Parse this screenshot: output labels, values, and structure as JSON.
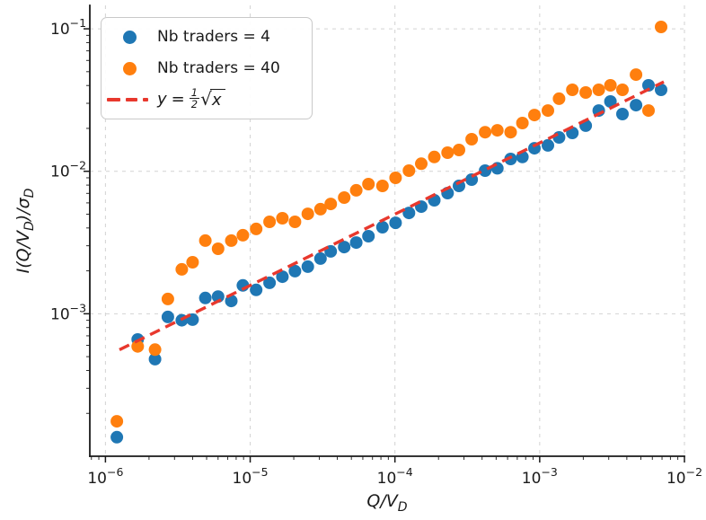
{
  "figure": {
    "background": "#ffffff",
    "text_color": "#1a1a1a"
  },
  "chart_data": {
    "type": "scatter",
    "title": "",
    "x_scale": "log",
    "y_scale": "log",
    "xlim": [
      7.8e-07,
      0.01
    ],
    "ylim": [
      0.0001,
      0.146
    ],
    "xlabel": "Q/V_D",
    "ylabel": "I(Q/V_D)/σ_D",
    "xlabel_parts": [
      {
        "t": "Q/V"
      },
      {
        "t": "D",
        "sub": true
      }
    ],
    "ylabel_parts": [
      {
        "t": "I(Q/V"
      },
      {
        "t": "D",
        "sub": true
      },
      {
        "t": ")/σ"
      },
      {
        "t": "D",
        "sub": true
      }
    ],
    "tick_base": "10",
    "x_tick_exponents": [
      -6,
      -5,
      -4,
      -3,
      -2
    ],
    "y_tick_exponents": [
      -1,
      -2,
      -3
    ],
    "x_tick_labels": [
      "10⁻⁶",
      "10⁻⁵",
      "10⁻⁴",
      "10⁻³",
      "10⁻²"
    ],
    "y_tick_labels": [
      "10⁻¹",
      "10⁻²",
      "10⁻³"
    ],
    "grid": {
      "show": true,
      "color": "#d2d2d2",
      "style": "dashed"
    },
    "legend_position": "upper-left",
    "x": [
      1.2e-06,
      1.67e-06,
      2.2e-06,
      2.7e-06,
      3.37e-06,
      4e-06,
      4.9e-06,
      6e-06,
      7.4e-06,
      8.9e-06,
      1.1e-05,
      1.36e-05,
      1.67e-05,
      2.04e-05,
      2.5e-05,
      3.06e-05,
      3.6e-05,
      4.46e-05,
      5.4e-05,
      6.56e-05,
      8.2e-05,
      0.000101,
      0.000125,
      0.000152,
      0.000187,
      0.000231,
      0.000277,
      0.000339,
      0.00042,
      0.00051,
      0.00063,
      0.00076,
      0.00092,
      0.00114,
      0.00136,
      0.00168,
      0.00208,
      0.00256,
      0.00308,
      0.00373,
      0.00463,
      0.00565,
      0.0069
    ],
    "series": [
      {
        "name": "Nb traders = 4",
        "color": "#1f77b4",
        "marker": "circle",
        "y": [
          0.000136,
          0.00066,
          0.00048,
          0.00095,
          0.0009,
          0.00091,
          0.00129,
          0.00132,
          0.00123,
          0.00158,
          0.00147,
          0.00165,
          0.00182,
          0.00199,
          0.00214,
          0.00244,
          0.00274,
          0.00294,
          0.00316,
          0.0035,
          0.00405,
          0.00435,
          0.0051,
          0.00565,
          0.00626,
          0.00703,
          0.0079,
          0.00874,
          0.0101,
          0.0105,
          0.0122,
          0.0126,
          0.0145,
          0.0152,
          0.0173,
          0.0186,
          0.0209,
          0.0267,
          0.0309,
          0.0252,
          0.0291,
          0.0401,
          0.0373
        ]
      },
      {
        "name": "Nb traders = 40",
        "color": "#ff7f0e",
        "marker": "circle",
        "y": [
          0.000176,
          0.00059,
          0.00056,
          0.00127,
          0.00205,
          0.0023,
          0.00326,
          0.00286,
          0.00326,
          0.00356,
          0.00394,
          0.00442,
          0.00468,
          0.00442,
          0.00503,
          0.00542,
          0.0059,
          0.00654,
          0.00735,
          0.00813,
          0.00789,
          0.009,
          0.0101,
          0.0113,
          0.0126,
          0.0135,
          0.0141,
          0.0168,
          0.0188,
          0.0194,
          0.0188,
          0.0218,
          0.0248,
          0.0267,
          0.0323,
          0.0373,
          0.0357,
          0.0373,
          0.0401,
          0.0373,
          0.0477,
          0.0267,
          0.103
        ]
      }
    ],
    "fit_line": {
      "label": "y = ½√x",
      "equation": "y = 0.5*sqrt(x)",
      "color": "#e8382d",
      "style": "dashed",
      "x_range": [
        1.25e-06,
        0.0072
      ]
    }
  },
  "legend": {
    "math": {
      "lhs": "y",
      "eq": "=",
      "num": "1",
      "den": "2",
      "sqrt_sign": "√",
      "arg": "x"
    }
  }
}
